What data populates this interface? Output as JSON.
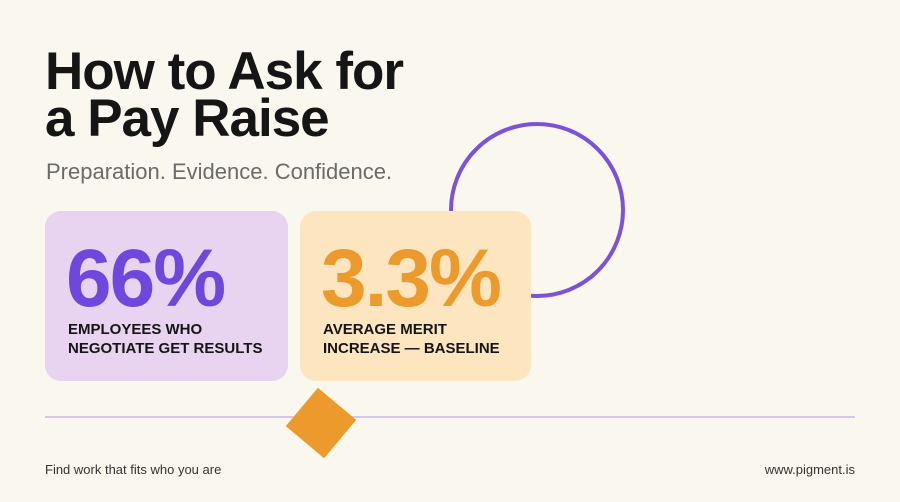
{
  "header": {
    "title_lines": [
      "How to Ask for",
      "a Pay Raise"
    ],
    "subtitle": "Preparation. Evidence. Confidence."
  },
  "stats": [
    {
      "value": "66%",
      "label_lines": [
        "EMPLOYEES WHO",
        "NEGOTIATE GET RESULTS"
      ]
    },
    {
      "value": "3.3%",
      "label_lines": [
        "AVERAGE MERIT",
        "INCREASE — BASELINE"
      ]
    }
  ],
  "footer": {
    "left": "Find work that fits who you are",
    "right": "www.pigment.is"
  }
}
